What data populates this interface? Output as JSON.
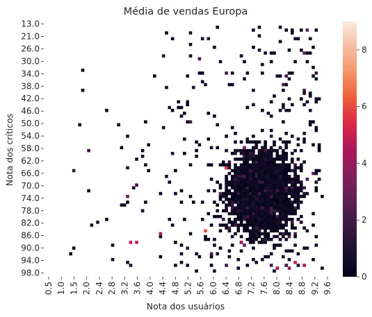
{
  "chart_data": {
    "type": "heatmap",
    "title": "Média de vendas Europa",
    "xlabel": "Nota dos usuários",
    "ylabel": "Nota dos críticos",
    "x_tick_labels": [
      "0.5",
      "1.0",
      "1.5",
      "2.0",
      "2.4",
      "2.8",
      "3.2",
      "3.6",
      "4.0",
      "4.4",
      "4.8",
      "5.2",
      "5.6",
      "6.0",
      "6.4",
      "6.8",
      "7.2",
      "7.6",
      "8.0",
      "8.4",
      "8.8",
      "9.2",
      "9.6"
    ],
    "y_tick_labels": [
      "13.0",
      "21.0",
      "26.0",
      "30.0",
      "34.0",
      "38.0",
      "42.0",
      "46.0",
      "50.0",
      "54.0",
      "58.0",
      "62.0",
      "66.0",
      "70.0",
      "74.0",
      "78.0",
      "82.0",
      "86.0",
      "90.0",
      "94.0",
      "98.0"
    ],
    "colorbar": {
      "min": 0,
      "max": 9,
      "ticks": [
        "0",
        "2",
        "4",
        "6",
        "8"
      ],
      "colormap": "rocket"
    },
    "grid": false,
    "legend": "colorbar-right",
    "notable_cells": [
      {
        "x": 6.4,
        "y": 62.0,
        "value": 5.5
      },
      {
        "x": 3.2,
        "y": 88.0,
        "value": 5.0
      },
      {
        "x": 3.4,
        "y": 88.0,
        "value": 5.0
      },
      {
        "x": 4.2,
        "y": 85.0,
        "value": 4.5
      },
      {
        "x": 5.7,
        "y": 84.0,
        "value": 6.0
      },
      {
        "x": 6.9,
        "y": 88.0,
        "value": 4.5
      },
      {
        "x": 8.7,
        "y": 95.0,
        "value": 5.0
      },
      {
        "x": 8.1,
        "y": 97.0,
        "value": 4.8
      },
      {
        "x": 8.5,
        "y": 97.0,
        "value": 4.0
      },
      {
        "x": 9.0,
        "y": 96.0,
        "value": 4.5
      },
      {
        "x": 7.0,
        "y": 55.0,
        "value": 3.5
      },
      {
        "x": 3.1,
        "y": 72.0,
        "value": 3.0
      }
    ]
  }
}
